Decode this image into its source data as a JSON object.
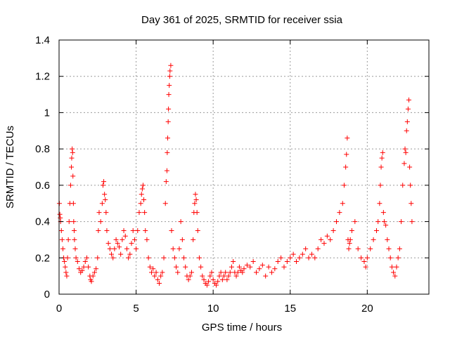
{
  "chart_data": {
    "type": "scatter",
    "title": "Day 361 of 2025, SRMTID for receiver ssia",
    "xlabel": "GPS time / hours",
    "ylabel": "SRMTID / TECUs",
    "xlim": [
      0,
      24
    ],
    "ylim": [
      0,
      1.4
    ],
    "xticks": [
      0,
      5,
      10,
      15,
      20
    ],
    "xtick_labels": [
      "0",
      "5",
      "10",
      "15",
      "20"
    ],
    "yticks": [
      0,
      0.2,
      0.4,
      0.6,
      0.8,
      1,
      1.2,
      1.4
    ],
    "ytick_labels": [
      "0",
      "0.2",
      "0.4",
      "0.6",
      "0.8",
      "1",
      "1.2",
      "1.4"
    ],
    "grid": true,
    "marker": "+",
    "series": [
      {
        "name": "SRMTID",
        "color": "#ff0000",
        "x": [
          0.02,
          0.05,
          0.08,
          0.1,
          0.15,
          0.2,
          0.25,
          0.3,
          0.35,
          0.4,
          0.45,
          0.5,
          0.55,
          0.6,
          0.65,
          0.7,
          0.75,
          0.8,
          0.82,
          0.85,
          0.88,
          0.9,
          0.93,
          0.95,
          0.98,
          1.0,
          1.05,
          1.1,
          1.2,
          1.3,
          1.4,
          1.5,
          1.6,
          1.7,
          1.8,
          1.9,
          2.0,
          2.05,
          2.1,
          2.2,
          2.3,
          2.4,
          2.5,
          2.55,
          2.6,
          2.7,
          2.8,
          2.85,
          2.9,
          2.95,
          3.0,
          3.05,
          3.1,
          3.2,
          3.3,
          3.4,
          3.5,
          3.6,
          3.7,
          3.8,
          3.9,
          4.0,
          4.1,
          4.2,
          4.3,
          4.4,
          4.5,
          4.6,
          4.7,
          4.8,
          4.9,
          5.0,
          5.1,
          5.2,
          5.3,
          5.35,
          5.4,
          5.45,
          5.5,
          5.55,
          5.6,
          5.7,
          5.8,
          5.9,
          6.0,
          6.1,
          6.2,
          6.3,
          6.4,
          6.5,
          6.6,
          6.7,
          6.8,
          6.9,
          6.95,
          7.0,
          7.02,
          7.05,
          7.08,
          7.1,
          7.12,
          7.15,
          7.18,
          7.2,
          7.25,
          7.3,
          7.4,
          7.5,
          7.6,
          7.7,
          7.8,
          7.9,
          8.0,
          8.1,
          8.2,
          8.3,
          8.4,
          8.5,
          8.6,
          8.7,
          8.75,
          8.8,
          8.85,
          8.9,
          8.95,
          9.0,
          9.1,
          9.2,
          9.3,
          9.4,
          9.5,
          9.6,
          9.7,
          9.8,
          9.9,
          10.0,
          10.1,
          10.2,
          10.3,
          10.4,
          10.5,
          10.6,
          10.7,
          10.8,
          10.9,
          11.0,
          11.1,
          11.2,
          11.3,
          11.4,
          11.5,
          11.6,
          11.7,
          11.8,
          11.9,
          12.0,
          12.2,
          12.4,
          12.6,
          12.8,
          13.0,
          13.2,
          13.4,
          13.6,
          13.8,
          14.0,
          14.2,
          14.4,
          14.6,
          14.8,
          15.0,
          15.2,
          15.4,
          15.6,
          15.8,
          16.0,
          16.2,
          16.4,
          16.6,
          16.8,
          17.0,
          17.2,
          17.4,
          17.6,
          17.8,
          18.0,
          18.2,
          18.4,
          18.5,
          18.6,
          18.65,
          18.7,
          18.75,
          18.8,
          18.85,
          18.9,
          19.0,
          19.2,
          19.4,
          19.6,
          19.8,
          19.9,
          20.0,
          20.2,
          20.4,
          20.6,
          20.7,
          20.8,
          20.85,
          20.9,
          20.95,
          21.0,
          21.05,
          21.1,
          21.2,
          21.3,
          21.4,
          21.5,
          21.6,
          21.7,
          21.8,
          21.9,
          22.0,
          22.1,
          22.2,
          22.3,
          22.4,
          22.45,
          22.5,
          22.55,
          22.6,
          22.65,
          22.7,
          22.75,
          22.8,
          22.85,
          22.9
        ],
        "y": [
          0.5,
          0.44,
          0.42,
          0.4,
          0.35,
          0.3,
          0.25,
          0.2,
          0.18,
          0.15,
          0.12,
          0.1,
          0.2,
          0.3,
          0.4,
          0.5,
          0.6,
          0.7,
          0.75,
          0.8,
          0.78,
          0.65,
          0.5,
          0.4,
          0.35,
          0.3,
          0.25,
          0.2,
          0.18,
          0.14,
          0.12,
          0.13,
          0.15,
          0.18,
          0.2,
          0.15,
          0.1,
          0.08,
          0.07,
          0.1,
          0.12,
          0.14,
          0.2,
          0.35,
          0.45,
          0.4,
          0.5,
          0.6,
          0.62,
          0.55,
          0.52,
          0.45,
          0.35,
          0.28,
          0.25,
          0.22,
          0.2,
          0.25,
          0.3,
          0.28,
          0.26,
          0.22,
          0.3,
          0.35,
          0.32,
          0.25,
          0.2,
          0.22,
          0.28,
          0.35,
          0.3,
          0.25,
          0.35,
          0.45,
          0.5,
          0.55,
          0.58,
          0.6,
          0.52,
          0.45,
          0.35,
          0.3,
          0.2,
          0.15,
          0.12,
          0.14,
          0.1,
          0.12,
          0.08,
          0.06,
          0.1,
          0.12,
          0.2,
          0.5,
          0.62,
          0.68,
          0.78,
          0.86,
          0.95,
          1.02,
          1.1,
          1.15,
          1.2,
          1.23,
          1.26,
          0.35,
          0.25,
          0.2,
          0.15,
          0.12,
          0.25,
          0.4,
          0.3,
          0.2,
          0.15,
          0.1,
          0.08,
          0.1,
          0.12,
          0.3,
          0.45,
          0.5,
          0.55,
          0.52,
          0.45,
          0.35,
          0.2,
          0.15,
          0.1,
          0.08,
          0.06,
          0.05,
          0.07,
          0.1,
          0.12,
          0.08,
          0.06,
          0.05,
          0.07,
          0.1,
          0.12,
          0.08,
          0.1,
          0.12,
          0.08,
          0.1,
          0.12,
          0.15,
          0.18,
          0.12,
          0.1,
          0.12,
          0.15,
          0.13,
          0.12,
          0.14,
          0.16,
          0.15,
          0.18,
          0.12,
          0.14,
          0.16,
          0.1,
          0.15,
          0.12,
          0.14,
          0.18,
          0.2,
          0.15,
          0.18,
          0.2,
          0.22,
          0.18,
          0.2,
          0.22,
          0.25,
          0.2,
          0.22,
          0.2,
          0.25,
          0.3,
          0.28,
          0.32,
          0.3,
          0.35,
          0.4,
          0.45,
          0.5,
          0.6,
          0.7,
          0.77,
          0.86,
          0.3,
          0.25,
          0.28,
          0.3,
          0.35,
          0.4,
          0.25,
          0.2,
          0.18,
          0.15,
          0.2,
          0.25,
          0.3,
          0.35,
          0.4,
          0.5,
          0.6,
          0.7,
          0.75,
          0.78,
          0.45,
          0.4,
          0.38,
          0.3,
          0.25,
          0.2,
          0.15,
          0.12,
          0.1,
          0.15,
          0.2,
          0.25,
          0.4,
          0.6,
          0.72,
          0.8,
          0.78,
          0.9,
          0.95,
          1.02,
          1.07,
          0.7,
          0.6,
          0.5,
          0.4
        ]
      }
    ]
  }
}
